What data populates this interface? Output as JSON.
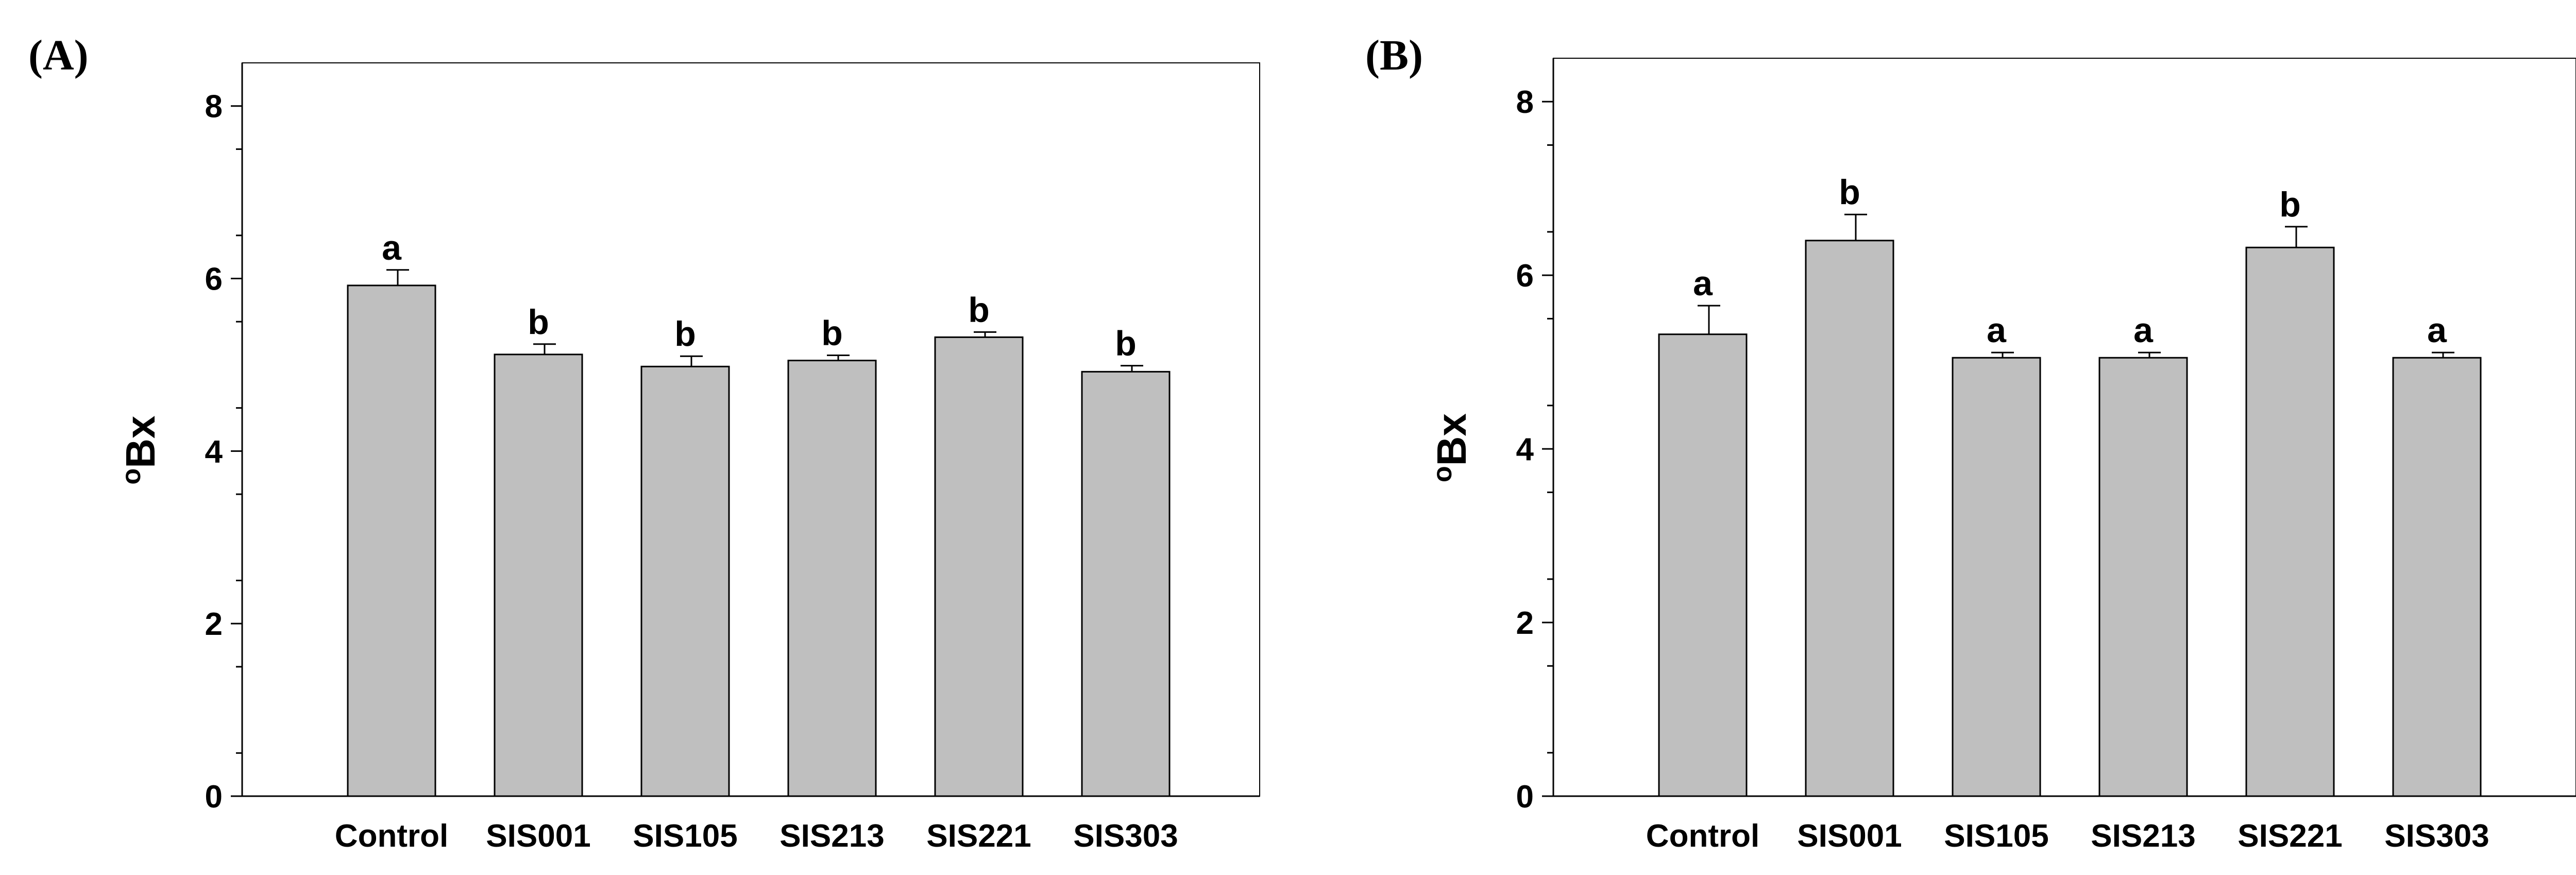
{
  "chart_data": [
    {
      "type": "bar",
      "panel_label": "(A)",
      "ylabel_sup": "o",
      "ylabel": "Bx",
      "ylim": [
        0,
        8.5
      ],
      "yticks": [
        0,
        2,
        4,
        6,
        8
      ],
      "tick_labels": [
        "0",
        "2",
        "4",
        "6",
        "8"
      ],
      "categories": [
        "Control",
        "SIS001",
        "SIS105",
        "SIS213",
        "SIS221",
        "SIS303"
      ],
      "values": [
        5.92,
        5.12,
        4.98,
        5.05,
        5.32,
        4.92
      ],
      "errors": [
        0.18,
        0.12,
        0.12,
        0.06,
        0.06,
        0.07
      ],
      "letters": [
        "a",
        "b",
        "b",
        "b",
        "b",
        "b"
      ]
    },
    {
      "type": "bar",
      "panel_label": "(B)",
      "ylabel_sup": "o",
      "ylabel": "Bx",
      "ylim": [
        0,
        8.5
      ],
      "yticks": [
        0,
        2,
        4,
        6,
        8
      ],
      "tick_labels": [
        "0",
        "2",
        "4",
        "6",
        "8"
      ],
      "categories": [
        "Control",
        "SIS001",
        "SIS105",
        "SIS213",
        "SIS221",
        "SIS303"
      ],
      "values": [
        5.32,
        6.4,
        5.05,
        5.05,
        6.32,
        5.05
      ],
      "errors": [
        0.33,
        0.3,
        0.06,
        0.06,
        0.24,
        0.06
      ],
      "letters": [
        "a",
        "b",
        "a",
        "a",
        "b",
        "a"
      ]
    }
  ]
}
